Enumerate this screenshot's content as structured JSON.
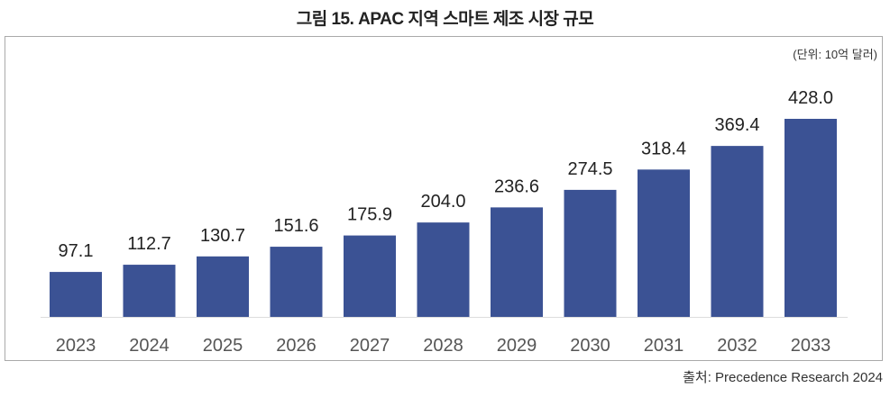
{
  "chart_data": {
    "type": "bar",
    "title": "그림 15. APAC 지역 스마트 제조 시장 규모",
    "unit_label": "(단위: 10억 달러)",
    "source": "출처: Precedence Research 2024",
    "categories": [
      "2023",
      "2024",
      "2025",
      "2026",
      "2027",
      "2028",
      "2029",
      "2030",
      "2031",
      "2032",
      "2033"
    ],
    "values": [
      97.1,
      112.7,
      130.7,
      151.6,
      175.9,
      204.0,
      236.6,
      274.5,
      318.4,
      369.4,
      428.0
    ],
    "value_labels": [
      "97.1",
      "112.7",
      "130.7",
      "151.6",
      "175.9",
      "204.0",
      "236.6",
      "274.5",
      "318.4",
      "369.4",
      "428.0"
    ],
    "xlabel": "",
    "ylabel": "",
    "ylim": [
      0,
      428
    ],
    "grid": false,
    "bar_color": "#3b5294"
  }
}
